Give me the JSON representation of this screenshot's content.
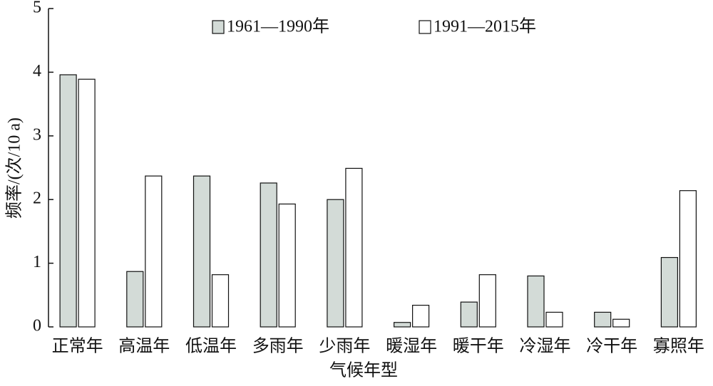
{
  "chart_data": {
    "type": "bar",
    "x_label": "气候年型",
    "y_label": "频率/(次/10 a)",
    "categories": [
      "正常年",
      "高温年",
      "低温年",
      "多雨年",
      "少雨年",
      "暖湿年",
      "暖干年",
      "冷湿年",
      "冷干年",
      "寡照年"
    ],
    "series": [
      {
        "name": "1961—1990年",
        "color": "#d3dbd7",
        "values": [
          3.96,
          0.87,
          2.37,
          2.26,
          2.0,
          0.07,
          0.39,
          0.8,
          0.23,
          1.09
        ]
      },
      {
        "name": "1991—2015年",
        "color": "#ffffff",
        "values": [
          3.89,
          2.37,
          0.82,
          1.93,
          2.49,
          0.34,
          0.82,
          0.23,
          0.12,
          2.14
        ]
      }
    ],
    "ylim": [
      0,
      5
    ],
    "yticks": [
      0,
      1,
      2,
      3,
      4,
      5
    ]
  }
}
